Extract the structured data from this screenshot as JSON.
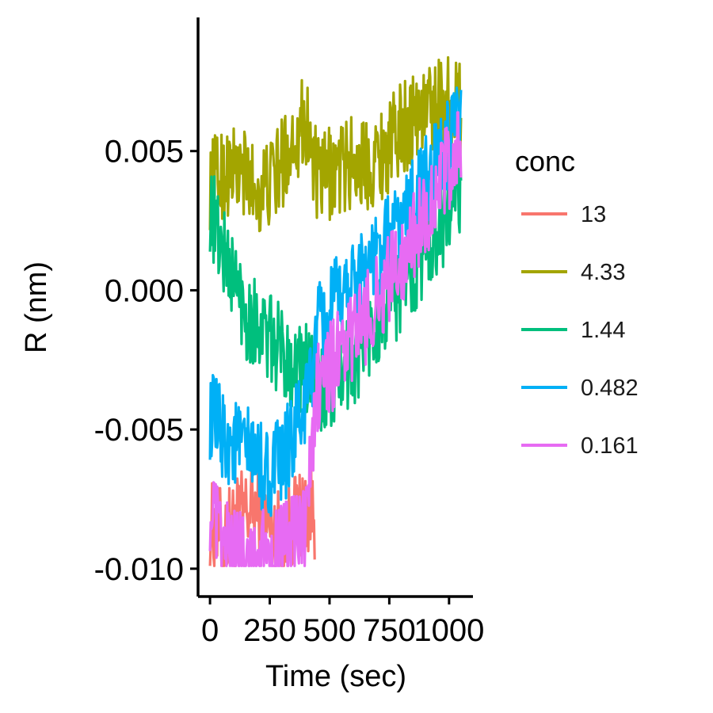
{
  "chart_data": {
    "type": "line",
    "xlabel": "Time (sec)",
    "ylabel": "R (nm)",
    "xlim": [
      -50,
      1100
    ],
    "ylim": [
      -0.011,
      0.0098
    ],
    "x_ticks": [
      0,
      250,
      500,
      750,
      1000
    ],
    "x_tick_labels": [
      "0",
      "250",
      "500",
      "750",
      "1000"
    ],
    "y_ticks": [
      -0.01,
      -0.005,
      0.0,
      0.005
    ],
    "y_tick_labels": [
      "-0.010",
      "-0.005",
      "0.000",
      "0.005"
    ],
    "grid": false,
    "legend": {
      "title": "conc",
      "placement": "right"
    },
    "series": [
      {
        "name": "13",
        "color": "#F8766D",
        "x": [
          0,
          60,
          120,
          180,
          240,
          300,
          360,
          400,
          440
        ],
        "y": [
          -0.0085,
          -0.0088,
          -0.0082,
          -0.0078,
          -0.0085,
          -0.0088,
          -0.0082,
          -0.0078,
          -0.008
        ]
      },
      {
        "name": "4.33",
        "color": "#A3A500",
        "x": [
          0,
          50,
          100,
          150,
          200,
          250,
          300,
          350,
          400,
          450,
          500,
          550,
          600,
          650,
          700,
          750,
          800,
          850,
          900,
          950,
          1000,
          1050
        ],
        "y": [
          0.0038,
          0.0042,
          0.0043,
          0.0041,
          0.0036,
          0.0038,
          0.0045,
          0.0055,
          0.0062,
          0.0038,
          0.0042,
          0.0044,
          0.0046,
          0.0045,
          0.0048,
          0.0052,
          0.0058,
          0.0062,
          0.0065,
          0.0067,
          0.0068,
          0.0065
        ]
      },
      {
        "name": "1.44",
        "color": "#00BF7D",
        "x": [
          0,
          50,
          100,
          150,
          200,
          250,
          300,
          350,
          400,
          450,
          500,
          550,
          600,
          650,
          700,
          750,
          800,
          850,
          900,
          950,
          1000,
          1050
        ],
        "y": [
          0.003,
          0.0015,
          0.0004,
          -0.0008,
          -0.0012,
          -0.0018,
          -0.0022,
          -0.0026,
          -0.0028,
          -0.0038,
          -0.0035,
          -0.003,
          -0.0025,
          -0.0018,
          -0.0012,
          -0.0006,
          0.0,
          0.0008,
          0.0015,
          0.0022,
          0.0028,
          0.0034
        ]
      },
      {
        "name": "0.482",
        "color": "#00B0F6",
        "x": [
          0,
          50,
          100,
          150,
          200,
          250,
          300,
          350,
          400,
          450,
          500,
          550,
          600,
          650,
          700,
          750,
          800,
          850,
          900,
          950,
          1000,
          1050
        ],
        "y": [
          -0.0045,
          -0.0052,
          -0.0055,
          -0.0058,
          -0.0062,
          -0.0066,
          -0.0062,
          -0.0052,
          -0.0042,
          -0.0015,
          -0.0008,
          -0.0002,
          0.0004,
          0.0008,
          0.0012,
          0.0018,
          0.0025,
          0.0032,
          0.0038,
          0.0045,
          0.0052,
          0.0058
        ]
      },
      {
        "name": "0.161",
        "color": "#E76BF3",
        "x": [
          0,
          50,
          100,
          150,
          200,
          250,
          300,
          350,
          400,
          450,
          500,
          550,
          600,
          650,
          700,
          750,
          800,
          850,
          900,
          950,
          1000,
          1050
        ],
        "y": [
          -0.0078,
          -0.0092,
          -0.0094,
          -0.0094,
          -0.0095,
          -0.0094,
          -0.0093,
          -0.009,
          -0.0085,
          -0.0035,
          -0.0028,
          -0.0022,
          -0.0016,
          -0.001,
          -0.0004,
          0.0004,
          0.0012,
          0.002,
          0.0028,
          0.0036,
          0.0044,
          0.0052
        ]
      }
    ]
  }
}
